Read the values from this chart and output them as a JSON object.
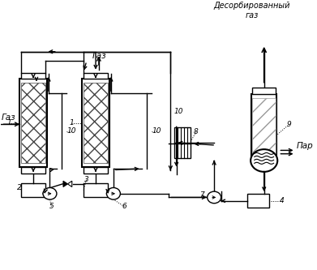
{
  "bg_color": "#ffffff",
  "top_label": "Десорбированный\nгаз",
  "gas_label": "Газ",
  "gas_label2": "Газ",
  "par_label": "Пар"
}
